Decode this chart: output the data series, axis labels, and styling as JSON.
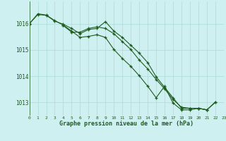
{
  "title": "Graphe pression niveau de la mer (hPa)",
  "bg_color": "#cff0f0",
  "grid_color": "#b0dede",
  "line_color": "#1e5c1e",
  "xlim": [
    0,
    23
  ],
  "ylim": [
    1012.5,
    1016.85
  ],
  "yticks": [
    1013,
    1014,
    1015,
    1016
  ],
  "xticks": [
    0,
    1,
    2,
    3,
    4,
    5,
    6,
    7,
    8,
    9,
    10,
    11,
    12,
    13,
    14,
    15,
    16,
    17,
    18,
    19,
    20,
    21,
    22,
    23
  ],
  "series": [
    [
      1016.0,
      1016.35,
      1016.32,
      1016.1,
      1015.98,
      1015.82,
      1015.62,
      1015.78,
      1015.82,
      1016.08,
      1015.72,
      1015.48,
      1015.18,
      1014.88,
      1014.52,
      1013.98,
      1013.58,
      1013.18,
      1012.78,
      1012.78,
      1012.78,
      1012.72,
      1013.0,
      null
    ],
    [
      1016.0,
      1016.38,
      1016.33,
      1016.12,
      1015.95,
      1015.72,
      1015.48,
      1015.52,
      1015.58,
      1015.48,
      1015.02,
      1014.68,
      1014.38,
      1014.02,
      1013.62,
      1013.18,
      1013.62,
      1012.98,
      1012.72,
      1012.72,
      1012.78,
      1012.72,
      1013.02,
      null
    ],
    [
      1016.0,
      null,
      null,
      null,
      1015.93,
      1015.68,
      1015.68,
      1015.82,
      1015.88,
      1015.82,
      1015.62,
      1015.32,
      1015.02,
      1014.62,
      1014.28,
      1013.88,
      1013.52,
      1013.12,
      1012.82,
      1012.78,
      1012.78,
      1012.72,
      null,
      null
    ]
  ]
}
